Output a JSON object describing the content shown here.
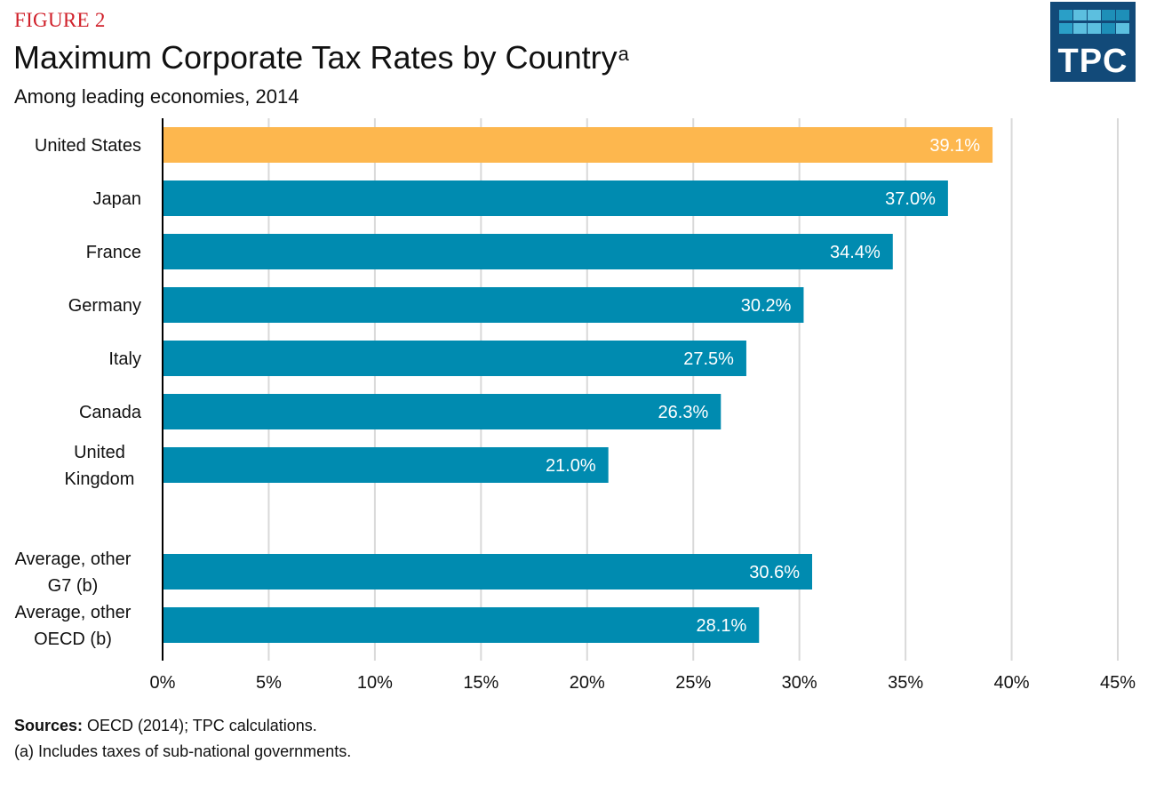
{
  "figure_label": "FIGURE 2",
  "logo": {
    "text": "TPC",
    "icon": "tpc-logo-icon",
    "bg_color": "#124a79",
    "square_colors": [
      "#2a9fc7",
      "#5cbfdf",
      "#5cbfdf",
      "#1e8fb8",
      "#1e8fb8",
      "#2a9fc7",
      "#5cbfdf",
      "#5cbfdf",
      "#1e8fb8",
      "#5cbfdf"
    ]
  },
  "footer": {
    "sources_label": "Sources:",
    "sources_text": " OECD (2014); TPC calculations.",
    "note": "(a) Includes taxes of sub-national governments."
  },
  "chart_data": {
    "type": "bar",
    "orientation": "horizontal",
    "title": "Maximum Corporate Tax Rates by Country",
    "title_superscript": "a",
    "subtitle": "Among leading economies, 2014",
    "xlabel": "",
    "ylabel": "",
    "xlim": [
      0,
      45
    ],
    "x_ticks": [
      0,
      5,
      10,
      15,
      20,
      25,
      30,
      35,
      40,
      45
    ],
    "x_tick_labels": [
      "0%",
      "5%",
      "10%",
      "15%",
      "20%",
      "25%",
      "30%",
      "35%",
      "40%",
      "45%"
    ],
    "grid": "vertical",
    "categories": [
      [
        "United States"
      ],
      [
        "Japan"
      ],
      [
        "France"
      ],
      [
        "Germany"
      ],
      [
        "Italy"
      ],
      [
        "Canada"
      ],
      [
        "United",
        "Kingdom"
      ],
      [],
      [
        "Average, other",
        "G7 (b)"
      ],
      [
        "Average, other",
        "OECD (b)"
      ]
    ],
    "values": [
      39.1,
      37.0,
      34.4,
      30.2,
      27.5,
      26.3,
      21.0,
      null,
      30.6,
      28.1
    ],
    "data_labels": [
      "39.1%",
      "37.0%",
      "34.4%",
      "30.2%",
      "27.5%",
      "26.3%",
      "21.0%",
      "",
      "30.6%",
      "28.1%"
    ],
    "highlight_index": 0,
    "colors": {
      "default": "#008bb0",
      "highlight": "#fdb74e",
      "grid": "#d9d9d9",
      "axis": "#000000",
      "label": "#ffffff"
    }
  }
}
